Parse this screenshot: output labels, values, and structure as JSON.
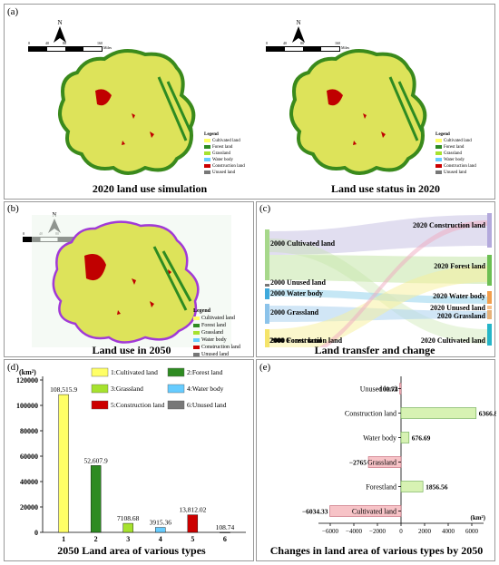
{
  "panel_a": {
    "label": "(a)",
    "left_title": "2020 land use simulation",
    "right_title": "Land use status in 2020",
    "north": "N",
    "scale_labels": [
      "0",
      "40",
      "80",
      "160"
    ],
    "scale_unit": "Miles",
    "legend_title": "Legend",
    "legend": [
      "Cultivated land",
      "Forest land",
      "Grassland",
      "Water body",
      "Construction land",
      "Unused land"
    ]
  },
  "panel_b": {
    "label": "(b)",
    "title": "Land use in 2050",
    "north": "N",
    "scale_labels": [
      "0",
      "40",
      "80",
      "160"
    ],
    "scale_unit": "Miles",
    "legend_title": "Legend",
    "legend": [
      "Cultivated land",
      "Forest land",
      "Grassland",
      "Water body",
      "Construction land",
      "Unused land"
    ]
  },
  "panel_c": {
    "label": "(c)",
    "title": "Land transfer and change",
    "left_nodes": [
      "2000 Cultivated land",
      "2000 Unused land",
      "2000 Water body",
      "2000 Grassland",
      "2000 Forest land",
      "2000 Construction land"
    ],
    "right_nodes": [
      "2020 Construction land",
      "2020 Forest land",
      "2020 Water body",
      "2020 Unused land",
      "2020 Grassland",
      "2020 Cultivated land"
    ]
  },
  "colors": {
    "cultivated": "#ffff66",
    "forest": "#2e8b22",
    "grassland": "#a6e22e",
    "water": "#66ccff",
    "construction": "#cc0000",
    "unused": "#777777"
  },
  "chart_data": [
    {
      "type": "bar",
      "label": "(d)",
      "title": "2050 Land area of various types",
      "unit": "(km²)",
      "categories": [
        "1",
        "2",
        "3",
        "4",
        "5",
        "6"
      ],
      "values": [
        108515.9,
        52607.9,
        7108.68,
        3915.36,
        13812.02,
        108.74
      ],
      "value_labels": [
        "108,515.9",
        "52,607.9",
        "7108.68",
        "3915.36",
        "13,812.02",
        "108.74"
      ],
      "yticks": [
        "0",
        "20000",
        "40000",
        "60000",
        "80000",
        "100000",
        "120000"
      ],
      "ylim": [
        0,
        120000
      ],
      "legend": [
        "1:Cultivated land",
        "2:Forest land",
        "3:Grassland",
        "4:Water body",
        "5:Construction land",
        "6:Unused land"
      ]
    },
    {
      "type": "bar",
      "orientation": "horizontal",
      "label": "(e)",
      "title": "Changes in land area of various types by 2050",
      "unit": "(km²)",
      "categories": [
        "Unused land",
        "Construction land",
        "Water body",
        "Grassland",
        "Forestland",
        "Cultivated land"
      ],
      "values": [
        -100.74,
        6366.82,
        676.69,
        -2765,
        1856.56,
        -6034.33
      ],
      "value_labels": [
        "−100.74",
        "6366.82",
        "676.69",
        "−2765",
        "1856.56",
        "−6034.33"
      ],
      "xticks": [
        "−6000",
        "−4000",
        "−2000",
        "0",
        "2000",
        "4000",
        "6000"
      ],
      "xlim": [
        -7000,
        7000
      ]
    }
  ]
}
